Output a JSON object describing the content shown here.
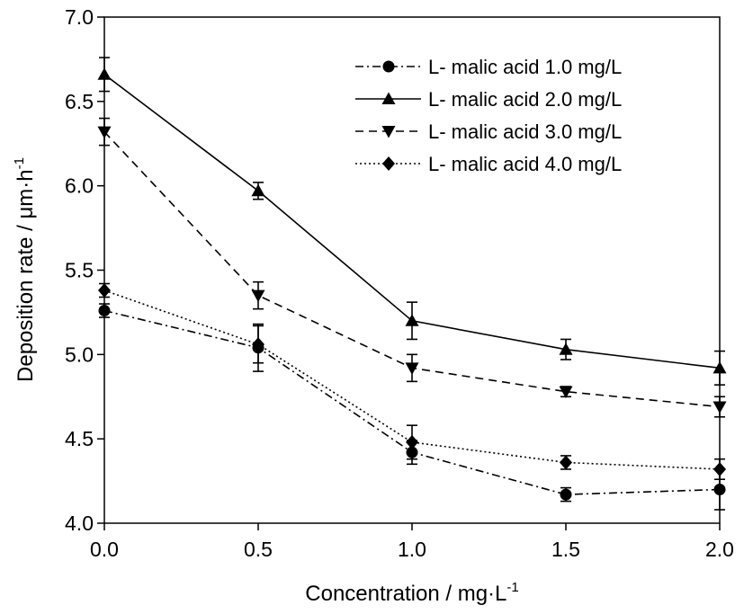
{
  "chart_data": {
    "type": "line",
    "title": "",
    "xlabel": "Concentration / mg·L",
    "xlabel_sup": "-1",
    "ylabel": "Deposition rate / μm·h",
    "ylabel_sup": "-1",
    "xlim": [
      0.0,
      2.0
    ],
    "ylim": [
      4.0,
      7.0
    ],
    "x_ticks": [
      "0.0",
      "0.5",
      "1.0",
      "1.5",
      "2.0"
    ],
    "y_ticks": [
      "4.0",
      "4.5",
      "5.0",
      "5.5",
      "6.0",
      "6.5",
      "7.0"
    ],
    "x": [
      0.0,
      0.5,
      1.0,
      1.5,
      2.0
    ],
    "legend_position": "top-right",
    "grid": false,
    "series": [
      {
        "name": "L- malic acid 1.0 mg/L",
        "marker": "circle",
        "line_style": "dash-dot",
        "values": [
          5.26,
          5.04,
          4.42,
          4.17,
          4.2
        ],
        "errors": [
          0.04,
          0.14,
          0.07,
          0.04,
          0.12
        ]
      },
      {
        "name": "L- malic acid 2.0 mg/L",
        "marker": "triangle-up",
        "line_style": "solid",
        "values": [
          6.66,
          5.97,
          5.2,
          5.03,
          4.92
        ],
        "errors": [
          0.1,
          0.05,
          0.11,
          0.06,
          0.1
        ]
      },
      {
        "name": "L- malic acid 3.0 mg/L",
        "marker": "triangle-down",
        "line_style": "dashed",
        "values": [
          6.32,
          5.35,
          4.92,
          4.78,
          4.69
        ],
        "errors": [
          0.08,
          0.08,
          0.08,
          0.03,
          0.06
        ]
      },
      {
        "name": "L- malic acid 4.0 mg/L",
        "marker": "diamond",
        "line_style": "dotted",
        "values": [
          5.38,
          5.06,
          4.48,
          4.36,
          4.32
        ],
        "errors": [
          0.04,
          0.11,
          0.1,
          0.04,
          0.06
        ]
      }
    ]
  }
}
